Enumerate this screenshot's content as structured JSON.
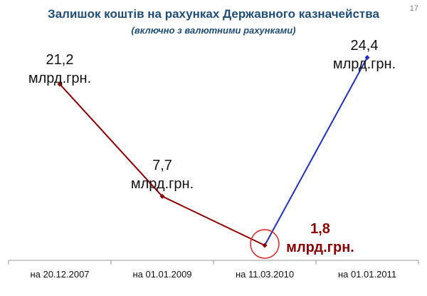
{
  "title": "Залишок коштів на рахунках Державного казначейства",
  "subtitle": "(включно з валютними рахунками)",
  "page_number": "17",
  "colors": {
    "title": "#1f4e79",
    "decline": "#8b0000",
    "rise": "#1f2fbf",
    "axis": "#999999"
  },
  "chart_data": {
    "type": "line",
    "categories": [
      "на 20.12.2007",
      "на 01.01.2009",
      "на 11.03.2010",
      "на 01.01.2011"
    ],
    "values": [
      21.2,
      7.7,
      1.8,
      24.4
    ],
    "value_labels": [
      "21,2",
      "7,7",
      "1,8",
      "24,4"
    ],
    "unit": "млрд.грн.",
    "highlight_index": 2,
    "ylim": [
      0,
      26
    ],
    "grid": false,
    "legend": "none",
    "series": [
      {
        "values": [
          21.2,
          7.7,
          1.8,
          null
        ],
        "color": "#8b0000"
      },
      {
        "values": [
          null,
          null,
          1.8,
          24.4
        ],
        "color": "#1f2fbf"
      }
    ]
  }
}
